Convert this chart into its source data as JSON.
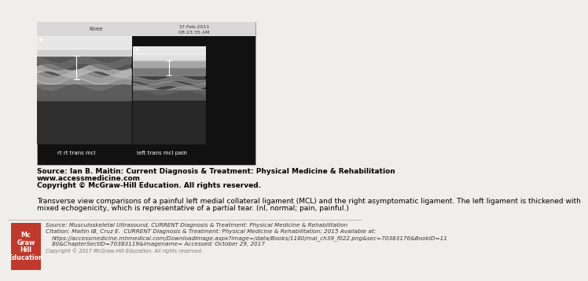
{
  "bg_color": "#f0eeeb",
  "source_text_line1": "Source: Ian B. Maitin: Current Diagnosis & Treatment: Physical Medicine & Rehabilitation",
  "source_text_line2": "www.accessmedicine.com",
  "source_text_line3": "Copyright © McGraw-Hill Education. All rights reserved.",
  "caption_line1": "Transverse view comparisons of a painful left medial collateral ligament (MCL) and the right asymptomatic ligament. The left ligament is thickened with",
  "caption_line2": "mixed echogenicity, which is representative of a partial tear. (nl, normal; pain, painful.)",
  "footer_source": "Source: Musculoskeletal Ultrasound, CURRENT Diagnosis & Treatment: Physical Medicine & Rehabilitation",
  "footer_citation": "Citation: Maitin IB, Cruz E.  CURRENT Diagnosis & Treatment: Physical Medicine & Rehabilitation; 2015 Available at:",
  "footer_url": "https://accessmedicine.mhmedical.com/DownloadImage.aspx?image=/data/Books/1180/mai_ch39_f022.png&sec=70383176&BookID=11",
  "footer_url2": "80&ChapterSectID=70383119&imagename= Accessed: October 29, 2017",
  "footer_copyright": "Copyright © 2017 McGraw-Hill Education. All rights reserved.",
  "logo_box_color": "#c0392b",
  "logo_text": "Mc\nGraw\nHill\nEducation",
  "label_left": "rt rt trans mcl",
  "label_right": "left trans mcl pain",
  "top_label": "Knee",
  "date_line1": "17-Feb-2011",
  "date_line2": "08:23:35 AM",
  "source_fontsize": 6.5,
  "caption_fontsize": 6.5,
  "footer_fontsize": 5.2
}
